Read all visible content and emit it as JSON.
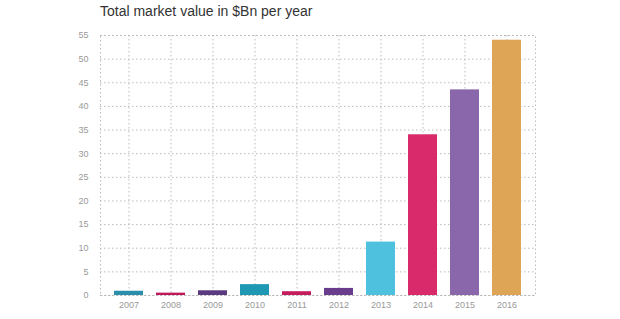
{
  "chart_data": {
    "type": "bar",
    "title": "Total market value in $Bn per year",
    "categories": [
      "2007",
      "2008",
      "2009",
      "2010",
      "2011",
      "2012",
      "2013",
      "2014",
      "2015",
      "2016"
    ],
    "values": [
      0.9,
      0.5,
      1.0,
      2.3,
      0.8,
      1.5,
      11.3,
      34,
      43.5,
      54
    ],
    "colors": [
      "#2a8fab",
      "#c2185b",
      "#5b3a80",
      "#1f98b3",
      "#c41c5d",
      "#6a3d8c",
      "#4ec1df",
      "#d92b6b",
      "#8a66ab",
      "#dea556"
    ],
    "ylim": [
      0,
      55
    ],
    "yticks": [
      0,
      5,
      10,
      15,
      20,
      25,
      30,
      35,
      40,
      45,
      50,
      55
    ],
    "grid": true
  }
}
